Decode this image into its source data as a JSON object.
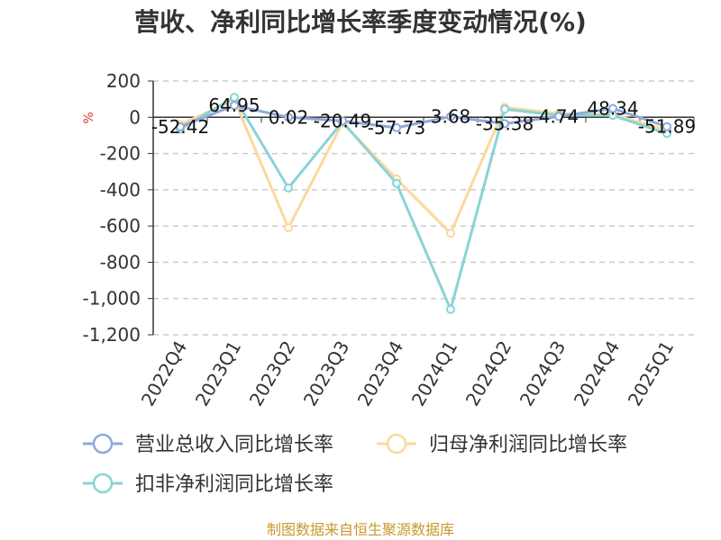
{
  "chart_data": {
    "type": "line",
    "title": "营收、净利同比增长率季度变动情况(%)",
    "ylabel": "%",
    "xlabel": "",
    "categories": [
      "2022Q4",
      "2023Q1",
      "2023Q2",
      "2023Q3",
      "2023Q4",
      "2024Q1",
      "2024Q2",
      "2024Q3",
      "2024Q4",
      "2025Q1"
    ],
    "ylim": [
      -1200,
      200
    ],
    "yticks": [
      200,
      0,
      -200,
      -400,
      -600,
      -800,
      -1000,
      -1200
    ],
    "ytick_labels": [
      "200",
      "0",
      "-200",
      "-400",
      "-600",
      "-800",
      "-1,000",
      "-1,200"
    ],
    "grid": true,
    "legend_position": "bottom-left",
    "series": [
      {
        "name": "营业总收入同比增长率",
        "color": "#8fa9db",
        "values": [
          -52.42,
          64.95,
          0.02,
          -20.49,
          -57.73,
          3.68,
          -35.38,
          4.74,
          48.34,
          -51.89
        ],
        "labels": [
          "-52.42",
          "64.95",
          "0.02",
          "-20.49",
          "-57.73",
          "3.68",
          "-35.38",
          "4.74",
          "48.34",
          "-51.89"
        ]
      },
      {
        "name": "归母净利润同比增长率",
        "color": "#fbd99c",
        "values": [
          -40,
          95,
          -610,
          -30,
          -340,
          -640,
          55,
          20,
          15,
          -70
        ]
      },
      {
        "name": "扣非净利润同比增长率",
        "color": "#88d4d6",
        "values": [
          -65,
          110,
          -390,
          -25,
          -365,
          -1060,
          45,
          10,
          10,
          -90
        ]
      }
    ]
  },
  "source": "制图数据来自恒生聚源数据库"
}
